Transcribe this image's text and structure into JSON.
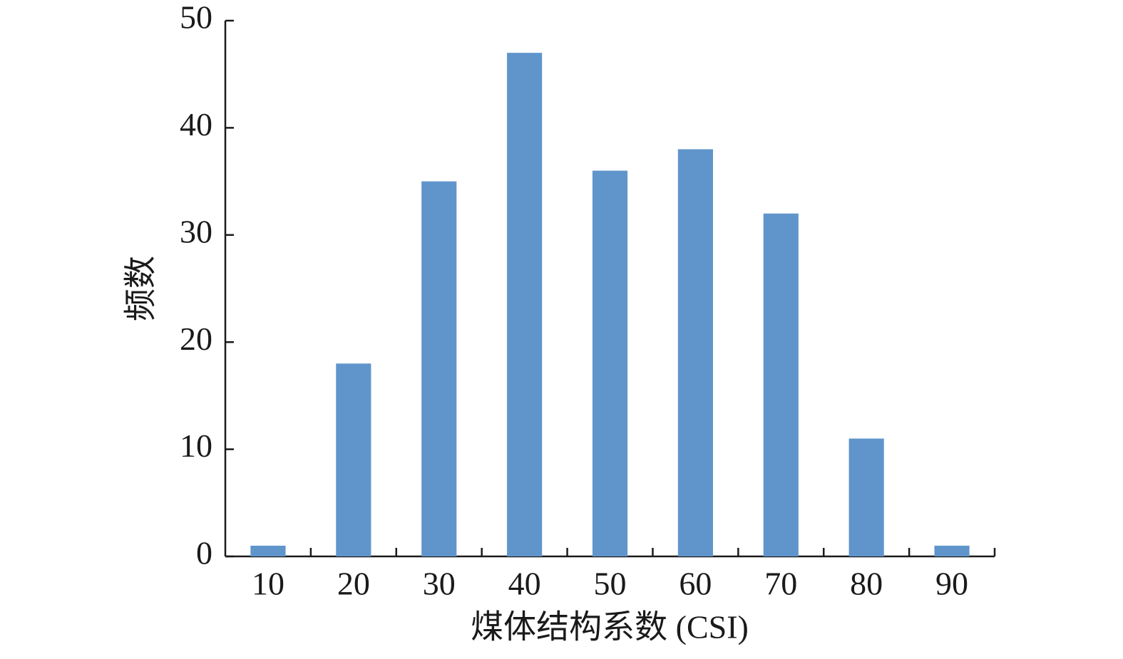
{
  "chart_data": {
    "type": "bar",
    "x_label": "煤体结构系数 (CSI)",
    "y_label": "频数",
    "categories": [
      "10",
      "20",
      "30",
      "40",
      "50",
      "60",
      "70",
      "80",
      "90"
    ],
    "values": [
      1,
      18,
      35,
      47,
      36,
      38,
      32,
      11,
      1
    ],
    "color": "#6095cc",
    "ylim": [
      0,
      50
    ],
    "yticks": [
      0,
      10,
      20,
      30,
      40,
      50
    ],
    "grid": false
  }
}
